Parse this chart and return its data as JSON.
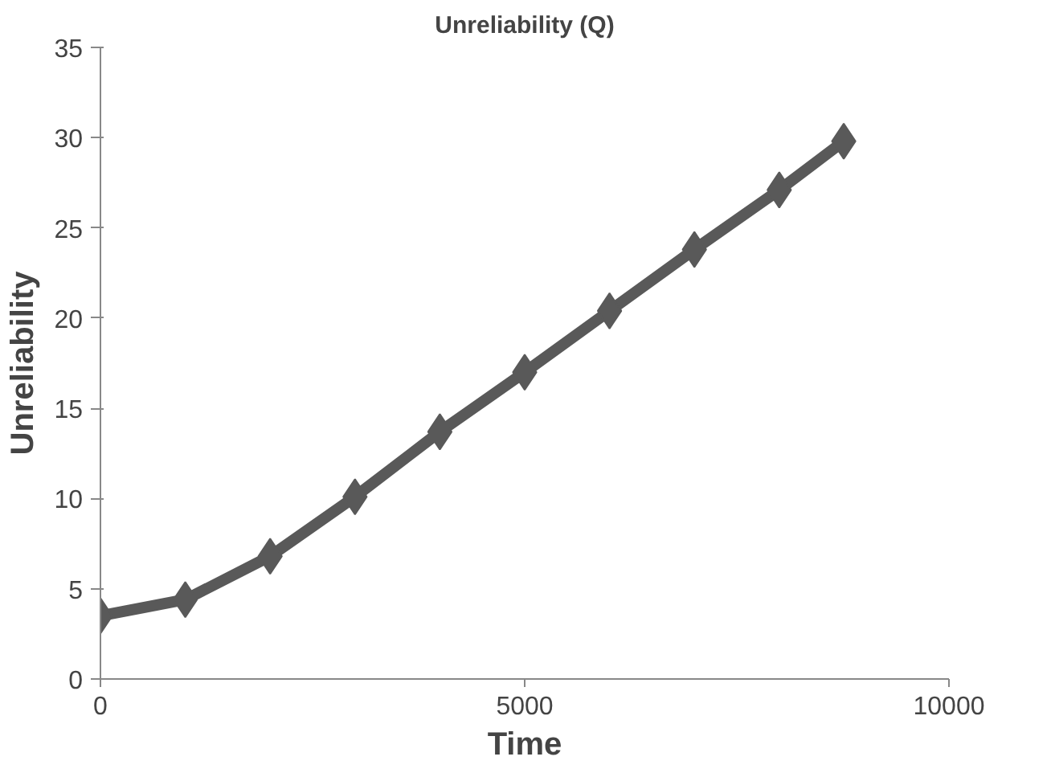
{
  "chart_data": {
    "type": "line",
    "title": "Unreliability (Q)",
    "xlabel": "Time",
    "ylabel": "Unreliability",
    "x": [
      0,
      1000,
      2000,
      3000,
      4000,
      5000,
      6000,
      7000,
      8000,
      8760
    ],
    "series": [
      {
        "color": "#595959",
        "values": [
          3.5,
          4.4,
          6.8,
          10.1,
          13.7,
          17.0,
          20.4,
          23.8,
          27.1,
          29.8
        ]
      }
    ],
    "xlim": [
      0,
      10000
    ],
    "xticks": [
      0,
      5000,
      10000
    ],
    "ylim": [
      0,
      35
    ],
    "yticks": [
      0,
      5,
      10,
      15,
      20,
      25,
      30,
      35
    ],
    "grid": false,
    "marker": "diamond",
    "line_style": "solid"
  }
}
